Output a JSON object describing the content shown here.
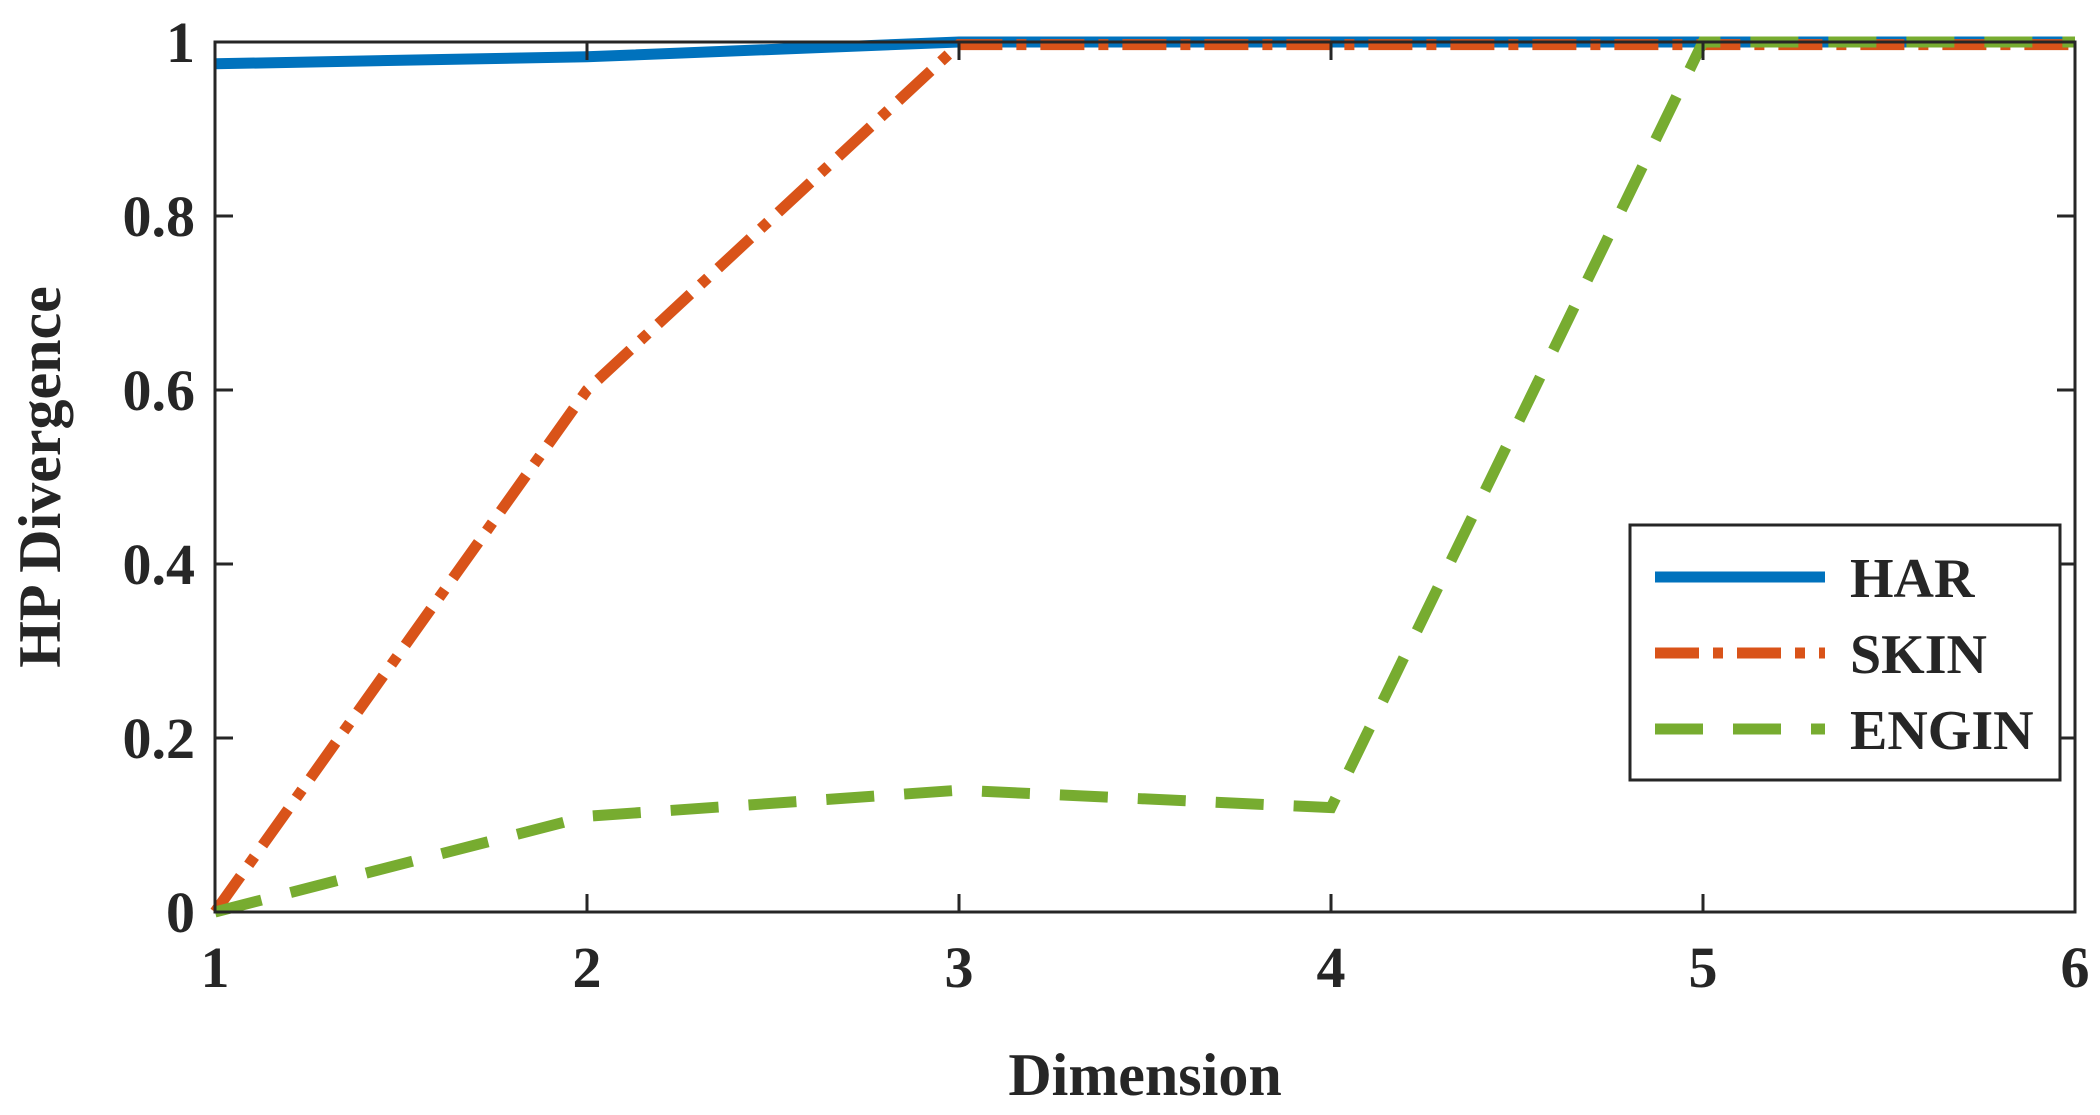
{
  "chart_data": {
    "type": "line",
    "xlabel": "Dimension",
    "ylabel": "HP Divergence",
    "xlim": [
      1,
      6
    ],
    "ylim": [
      0,
      1
    ],
    "x": [
      1,
      2,
      3,
      4,
      5,
      6
    ],
    "x_ticks": [
      "1",
      "2",
      "3",
      "4",
      "5",
      "6"
    ],
    "y_ticks": [
      {
        "value": 0,
        "label": "0"
      },
      {
        "value": 0.2,
        "label": "0.2"
      },
      {
        "value": 0.4,
        "label": "0.4"
      },
      {
        "value": 0.6,
        "label": "0.6"
      },
      {
        "value": 0.8,
        "label": "0.8"
      },
      {
        "value": 1,
        "label": "1"
      }
    ],
    "grid": false,
    "legend_position": "lower-right",
    "series": [
      {
        "name": "HAR",
        "values": [
          0.975,
          0.983,
          1.0,
          1.0,
          1.0,
          1.0
        ],
        "color": "#0072BD",
        "style": "solid"
      },
      {
        "name": "SKIN",
        "values": [
          0.0,
          0.6,
          0.997,
          0.997,
          0.997,
          0.997
        ],
        "color": "#D95319",
        "style": "dashdot"
      },
      {
        "name": "ENGIN",
        "values": [
          0.0,
          0.11,
          0.14,
          0.12,
          1.0,
          1.0
        ],
        "color": "#77AC30",
        "style": "dashed"
      }
    ]
  }
}
